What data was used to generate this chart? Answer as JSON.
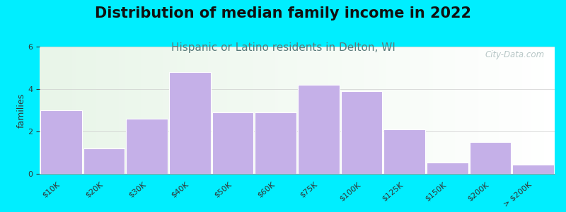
{
  "title": "Distribution of median family income in 2022",
  "subtitle": "Hispanic or Latino residents in Delton, WI",
  "ylabel": "families",
  "categories": [
    "$10K",
    "$20K",
    "$30K",
    "$40K",
    "$50K",
    "$60K",
    "$75K",
    "$100K",
    "$125K",
    "$150K",
    "$200K",
    "> $200K"
  ],
  "values": [
    3.0,
    1.2,
    2.6,
    4.8,
    2.9,
    2.9,
    4.2,
    3.9,
    2.1,
    0.55,
    1.5,
    0.45
  ],
  "bar_color": "#c5b0e8",
  "bar_edge_color": "#ffffff",
  "ylim": [
    0,
    6
  ],
  "yticks": [
    0,
    2,
    4,
    6
  ],
  "background_outer": "#00eeff",
  "title_fontsize": 15,
  "subtitle_fontsize": 11,
  "subtitle_color": "#5a7a7a",
  "axis_label_fontsize": 9,
  "tick_fontsize": 8,
  "watermark_text": "City-Data.com",
  "watermark_color": "#aabcbc"
}
